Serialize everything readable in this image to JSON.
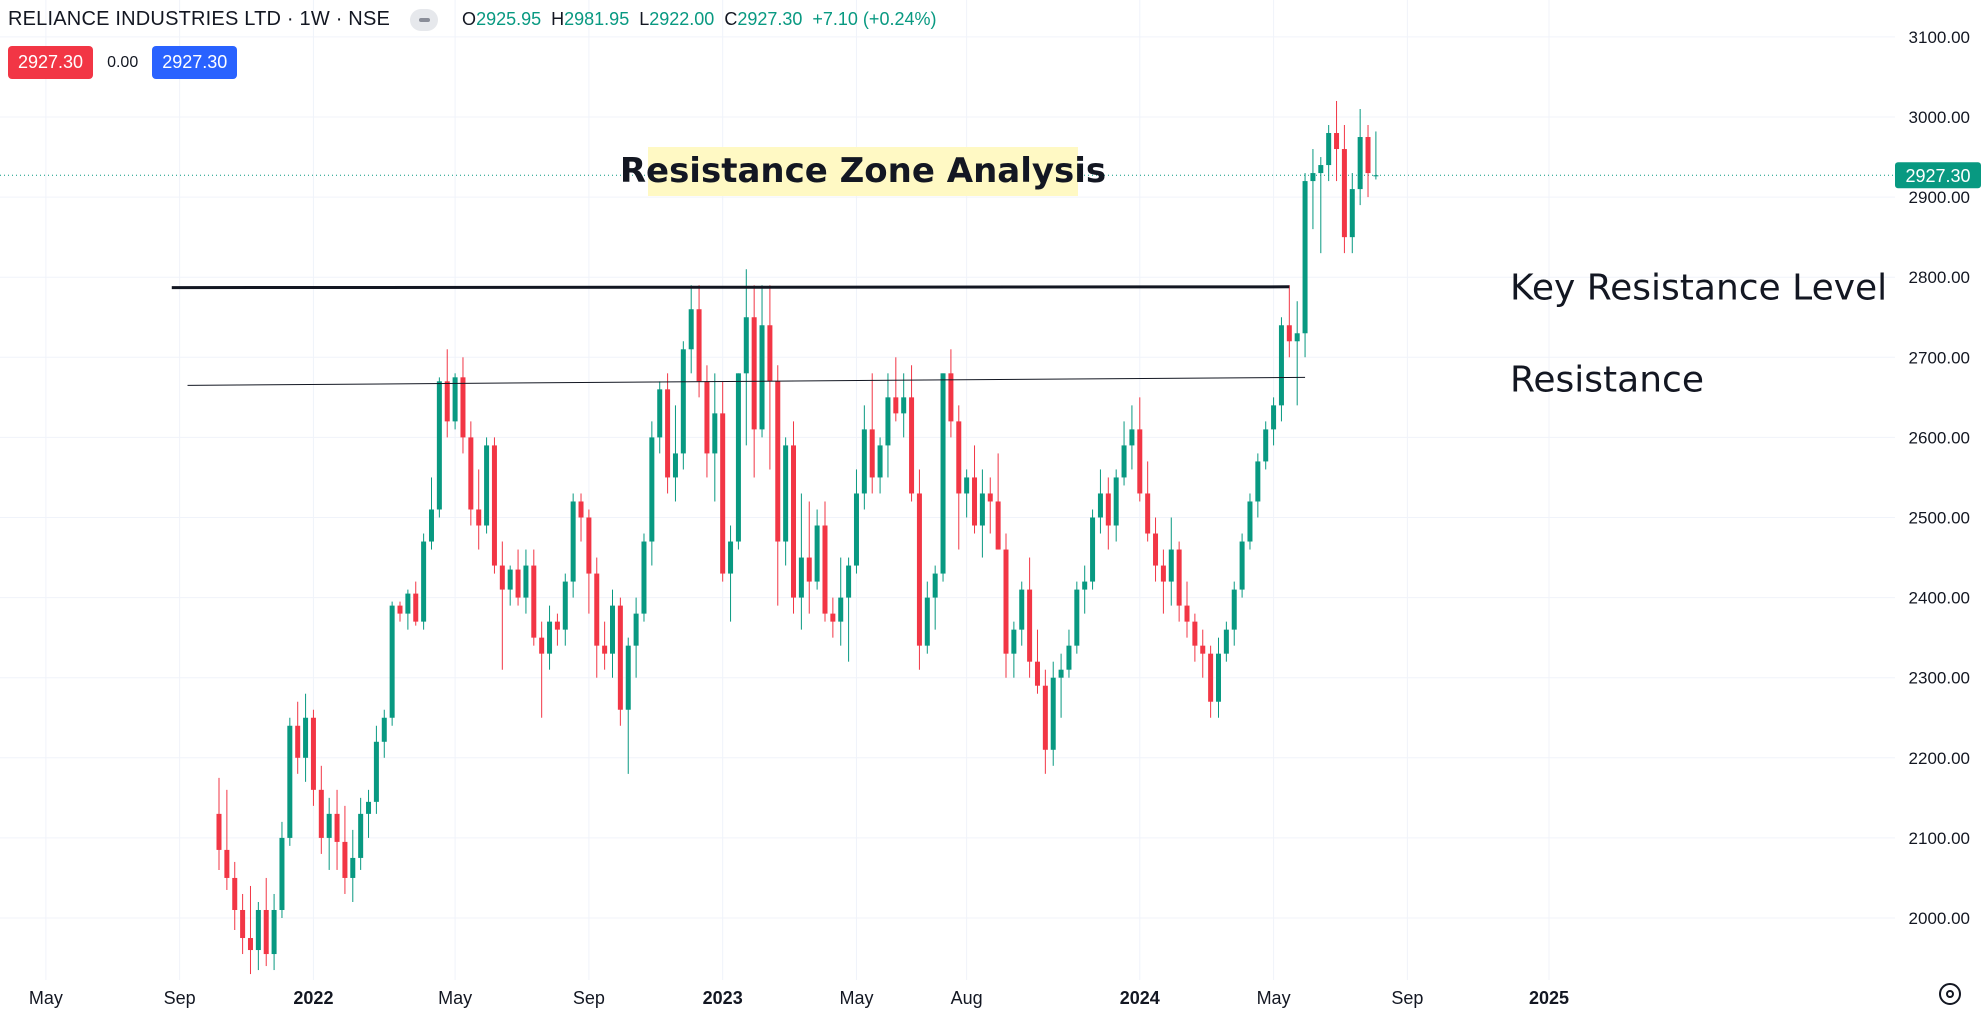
{
  "header": {
    "title": "RELIANCE INDUSTRIES LTD · 1W · NSE",
    "ohlc": {
      "o_label": "O",
      "o_value": "2925.95",
      "h_label": "H",
      "h_value": "2981.95",
      "l_label": "L",
      "l_value": "2922.00",
      "c_label": "C",
      "c_value": "2927.30",
      "change": "+7.10 (+0.24%)"
    },
    "sell_price": "2927.30",
    "spread": "0.00",
    "buy_price": "2927.30"
  },
  "colors": {
    "up": "#089981",
    "down": "#f23645",
    "grid": "#f0f3fa",
    "axis_text": "#131722",
    "title_bg": "#fff9c4",
    "last_price_bg": "#089981"
  },
  "chart_data": {
    "type": "candlestick",
    "timeframe": "1W",
    "ylim": [
      1925,
      3160
    ],
    "y_ticks": [
      2000,
      2100,
      2200,
      2300,
      2400,
      2500,
      2600,
      2700,
      2800,
      2900,
      3000,
      3100
    ],
    "y_tick_labels": [
      "2000.00",
      "2100.00",
      "2200.00",
      "2300.00",
      "2400.00",
      "2500.00",
      "2600.00",
      "2700.00",
      "2800.00",
      "2900.00",
      "3000.00",
      "3100.00"
    ],
    "x_labels": [
      {
        "label": "May",
        "bar": -22,
        "bold": false
      },
      {
        "label": "Sep",
        "bar": -5,
        "bold": false
      },
      {
        "label": "2022",
        "bar": 12,
        "bold": true
      },
      {
        "label": "May",
        "bar": 30,
        "bold": false
      },
      {
        "label": "Sep",
        "bar": 47,
        "bold": false
      },
      {
        "label": "2023",
        "bar": 64,
        "bold": true
      },
      {
        "label": "May",
        "bar": 81,
        "bold": false
      },
      {
        "label": "Aug",
        "bar": 95,
        "bold": false
      },
      {
        "label": "2024",
        "bar": 117,
        "bold": true
      },
      {
        "label": "May",
        "bar": 134,
        "bold": false
      },
      {
        "label": "Sep",
        "bar": 151,
        "bold": false
      },
      {
        "label": "2025",
        "bar": 169,
        "bold": true
      }
    ],
    "last_price": 2927.3,
    "last_price_label": "2927.30",
    "title_annotation": "Resistance Zone Analysis",
    "lines": [
      {
        "name": "key-resistance-line",
        "label": "Key Resistance Level",
        "x1_bar": -6,
        "x2_bar": 136,
        "y1": 2787,
        "y2": 2788,
        "width": 3
      },
      {
        "name": "resistance-line",
        "label": "Resistance",
        "x1_bar": -4,
        "x2_bar": 138,
        "y1": 2665,
        "y2": 2675,
        "width": 1
      }
    ],
    "candles": [
      [
        2130,
        2175,
        2060,
        2085
      ],
      [
        2085,
        2160,
        2035,
        2050
      ],
      [
        2050,
        2070,
        1985,
        2010
      ],
      [
        2010,
        2030,
        1955,
        1975
      ],
      [
        1975,
        2040,
        1930,
        1960
      ],
      [
        1960,
        2020,
        1935,
        2010
      ],
      [
        2010,
        2050,
        1940,
        1955
      ],
      [
        1955,
        2030,
        1935,
        2010
      ],
      [
        2010,
        2120,
        2000,
        2100
      ],
      [
        2100,
        2250,
        2090,
        2240
      ],
      [
        2240,
        2270,
        2180,
        2200
      ],
      [
        2200,
        2280,
        2170,
        2250
      ],
      [
        2250,
        2260,
        2140,
        2160
      ],
      [
        2160,
        2190,
        2080,
        2100
      ],
      [
        2100,
        2150,
        2060,
        2130
      ],
      [
        2130,
        2160,
        2060,
        2095
      ],
      [
        2095,
        2140,
        2030,
        2050
      ],
      [
        2050,
        2110,
        2020,
        2075
      ],
      [
        2075,
        2150,
        2060,
        2130
      ],
      [
        2130,
        2160,
        2100,
        2145
      ],
      [
        2145,
        2240,
        2130,
        2220
      ],
      [
        2220,
        2260,
        2200,
        2250
      ],
      [
        2250,
        2395,
        2240,
        2390
      ],
      [
        2390,
        2395,
        2370,
        2380
      ],
      [
        2380,
        2410,
        2360,
        2405
      ],
      [
        2405,
        2420,
        2365,
        2370
      ],
      [
        2370,
        2480,
        2360,
        2470
      ],
      [
        2470,
        2550,
        2460,
        2510
      ],
      [
        2510,
        2675,
        2500,
        2670
      ],
      [
        2670,
        2710,
        2600,
        2620
      ],
      [
        2620,
        2680,
        2610,
        2675
      ],
      [
        2675,
        2700,
        2580,
        2600
      ],
      [
        2600,
        2620,
        2490,
        2510
      ],
      [
        2510,
        2560,
        2460,
        2490
      ],
      [
        2490,
        2600,
        2480,
        2590
      ],
      [
        2590,
        2600,
        2430,
        2440
      ],
      [
        2440,
        2470,
        2310,
        2410
      ],
      [
        2410,
        2440,
        2390,
        2435
      ],
      [
        2435,
        2460,
        2390,
        2400
      ],
      [
        2400,
        2460,
        2380,
        2440
      ],
      [
        2440,
        2460,
        2340,
        2350
      ],
      [
        2350,
        2370,
        2250,
        2330
      ],
      [
        2330,
        2390,
        2310,
        2370
      ],
      [
        2370,
        2380,
        2340,
        2360
      ],
      [
        2360,
        2430,
        2340,
        2420
      ],
      [
        2420,
        2530,
        2400,
        2520
      ],
      [
        2520,
        2530,
        2470,
        2500
      ],
      [
        2500,
        2510,
        2380,
        2430
      ],
      [
        2430,
        2450,
        2300,
        2340
      ],
      [
        2340,
        2370,
        2310,
        2330
      ],
      [
        2330,
        2410,
        2300,
        2390
      ],
      [
        2390,
        2400,
        2240,
        2260
      ],
      [
        2260,
        2350,
        2180,
        2340
      ],
      [
        2340,
        2400,
        2300,
        2380
      ],
      [
        2380,
        2480,
        2370,
        2470
      ],
      [
        2470,
        2620,
        2440,
        2600
      ],
      [
        2600,
        2670,
        2580,
        2660
      ],
      [
        2660,
        2680,
        2530,
        2550
      ],
      [
        2550,
        2640,
        2520,
        2580
      ],
      [
        2580,
        2720,
        2560,
        2710
      ],
      [
        2710,
        2790,
        2680,
        2760
      ],
      [
        2760,
        2790,
        2650,
        2670
      ],
      [
        2670,
        2690,
        2550,
        2580
      ],
      [
        2580,
        2680,
        2520,
        2630
      ],
      [
        2630,
        2670,
        2420,
        2430
      ],
      [
        2430,
        2490,
        2370,
        2470
      ],
      [
        2470,
        2680,
        2460,
        2680
      ],
      [
        2680,
        2810,
        2590,
        2750
      ],
      [
        2750,
        2790,
        2550,
        2610
      ],
      [
        2610,
        2790,
        2600,
        2740
      ],
      [
        2740,
        2790,
        2560,
        2670
      ],
      [
        2670,
        2690,
        2390,
        2470
      ],
      [
        2470,
        2600,
        2440,
        2590
      ],
      [
        2590,
        2620,
        2380,
        2400
      ],
      [
        2400,
        2530,
        2360,
        2450
      ],
      [
        2450,
        2520,
        2380,
        2420
      ],
      [
        2420,
        2510,
        2410,
        2490
      ],
      [
        2490,
        2520,
        2370,
        2380
      ],
      [
        2380,
        2400,
        2350,
        2370
      ],
      [
        2370,
        2450,
        2340,
        2400
      ],
      [
        2400,
        2450,
        2320,
        2440
      ],
      [
        2440,
        2560,
        2430,
        2530
      ],
      [
        2530,
        2640,
        2510,
        2610
      ],
      [
        2610,
        2680,
        2530,
        2550
      ],
      [
        2550,
        2600,
        2530,
        2590
      ],
      [
        2590,
        2680,
        2550,
        2650
      ],
      [
        2650,
        2700,
        2620,
        2630
      ],
      [
        2630,
        2680,
        2600,
        2650
      ],
      [
        2650,
        2690,
        2520,
        2530
      ],
      [
        2530,
        2560,
        2310,
        2340
      ],
      [
        2340,
        2420,
        2330,
        2400
      ],
      [
        2400,
        2440,
        2360,
        2430
      ],
      [
        2430,
        2680,
        2420,
        2680
      ],
      [
        2680,
        2710,
        2600,
        2620
      ],
      [
        2620,
        2640,
        2460,
        2530
      ],
      [
        2530,
        2560,
        2500,
        2550
      ],
      [
        2550,
        2590,
        2480,
        2490
      ],
      [
        2490,
        2560,
        2450,
        2530
      ],
      [
        2530,
        2550,
        2480,
        2520
      ],
      [
        2520,
        2580,
        2460,
        2460
      ],
      [
        2460,
        2480,
        2300,
        2330
      ],
      [
        2330,
        2370,
        2300,
        2360
      ],
      [
        2360,
        2420,
        2340,
        2410
      ],
      [
        2410,
        2450,
        2300,
        2320
      ],
      [
        2320,
        2360,
        2280,
        2290
      ],
      [
        2290,
        2310,
        2180,
        2210
      ],
      [
        2210,
        2320,
        2190,
        2300
      ],
      [
        2300,
        2330,
        2250,
        2310
      ],
      [
        2310,
        2360,
        2300,
        2340
      ],
      [
        2340,
        2420,
        2330,
        2410
      ],
      [
        2410,
        2440,
        2380,
        2420
      ],
      [
        2420,
        2510,
        2410,
        2500
      ],
      [
        2500,
        2560,
        2480,
        2530
      ],
      [
        2530,
        2550,
        2460,
        2490
      ],
      [
        2490,
        2560,
        2470,
        2550
      ],
      [
        2550,
        2620,
        2540,
        2590
      ],
      [
        2590,
        2640,
        2560,
        2610
      ],
      [
        2610,
        2650,
        2520,
        2530
      ],
      [
        2530,
        2570,
        2470,
        2480
      ],
      [
        2480,
        2500,
        2420,
        2440
      ],
      [
        2440,
        2460,
        2380,
        2420
      ],
      [
        2420,
        2500,
        2390,
        2460
      ],
      [
        2460,
        2470,
        2370,
        2390
      ],
      [
        2390,
        2420,
        2350,
        2370
      ],
      [
        2370,
        2380,
        2320,
        2340
      ],
      [
        2340,
        2360,
        2300,
        2330
      ],
      [
        2330,
        2340,
        2250,
        2270
      ],
      [
        2270,
        2350,
        2250,
        2330
      ],
      [
        2330,
        2370,
        2320,
        2360
      ],
      [
        2360,
        2420,
        2340,
        2410
      ],
      [
        2410,
        2480,
        2400,
        2470
      ],
      [
        2470,
        2530,
        2460,
        2520
      ],
      [
        2520,
        2580,
        2500,
        2570
      ],
      [
        2570,
        2620,
        2560,
        2610
      ],
      [
        2610,
        2650,
        2590,
        2640
      ],
      [
        2640,
        2750,
        2620,
        2740
      ],
      [
        2740,
        2790,
        2700,
        2720
      ],
      [
        2720,
        2770,
        2640,
        2730
      ],
      [
        2730,
        2930,
        2700,
        2920
      ],
      [
        2920,
        2960,
        2860,
        2930
      ],
      [
        2930,
        2950,
        2830,
        2940
      ],
      [
        2940,
        2990,
        2920,
        2980
      ],
      [
        2980,
        3020,
        2920,
        2960
      ],
      [
        2960,
        2990,
        2830,
        2850
      ],
      [
        2850,
        2930,
        2830,
        2910
      ],
      [
        2910,
        3010,
        2890,
        2975
      ],
      [
        2975,
        2990,
        2900,
        2930
      ],
      [
        2925.95,
        2981.95,
        2922.0,
        2927.3
      ]
    ]
  }
}
